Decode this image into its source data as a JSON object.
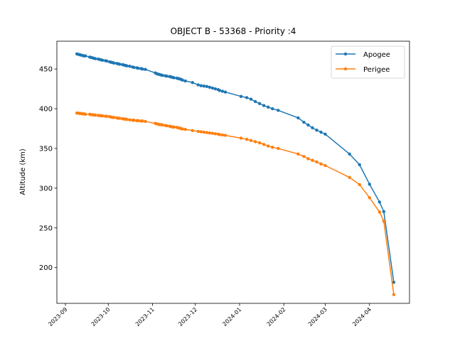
{
  "chart_data": {
    "type": "line",
    "title": "OBJECT B - 53368 - Priority :4",
    "xlabel": "",
    "ylabel": "Altitude (km)",
    "x_axis_type": "date",
    "xlim": [
      "2023-08-26",
      "2024-04-29"
    ],
    "ylim": [
      155,
      485
    ],
    "x_ticks": [
      "2023-09",
      "2023-10",
      "2023-11",
      "2023-12",
      "2024-01",
      "2024-02",
      "2024-03",
      "2024-04"
    ],
    "y_ticks": [
      200,
      250,
      300,
      350,
      400,
      450
    ],
    "grid": false,
    "legend_position": "top-right",
    "series": [
      {
        "name": "Apogee",
        "color": "#1f77b4",
        "points": [
          [
            "2023-09-09",
            469
          ],
          [
            "2023-09-10",
            468.5
          ],
          [
            "2023-09-11",
            468
          ],
          [
            "2023-09-12",
            467.5
          ],
          [
            "2023-09-13",
            467
          ],
          [
            "2023-09-14",
            466.5
          ],
          [
            "2023-09-15",
            466.5
          ],
          [
            "2023-09-18",
            465
          ],
          [
            "2023-09-19",
            464.5
          ],
          [
            "2023-09-20",
            464
          ],
          [
            "2023-09-21",
            463.5
          ],
          [
            "2023-09-22",
            463
          ],
          [
            "2023-09-24",
            462.5
          ],
          [
            "2023-09-25",
            462
          ],
          [
            "2023-09-26",
            461.5
          ],
          [
            "2023-09-27",
            461
          ],
          [
            "2023-09-29",
            460.5
          ],
          [
            "2023-09-30",
            460
          ],
          [
            "2023-10-02",
            459
          ],
          [
            "2023-10-03",
            458.5
          ],
          [
            "2023-10-04",
            458
          ],
          [
            "2023-10-05",
            457.5
          ],
          [
            "2023-10-07",
            457
          ],
          [
            "2023-10-08",
            456.5
          ],
          [
            "2023-10-09",
            456
          ],
          [
            "2023-10-11",
            455.5
          ],
          [
            "2023-10-12",
            455
          ],
          [
            "2023-10-13",
            454.5
          ],
          [
            "2023-10-14",
            454
          ],
          [
            "2023-10-16",
            453.5
          ],
          [
            "2023-10-18",
            452.5
          ],
          [
            "2023-10-19",
            452
          ],
          [
            "2023-10-21",
            451.5
          ],
          [
            "2023-10-22",
            451
          ],
          [
            "2023-10-24",
            450.5
          ],
          [
            "2023-10-25",
            450
          ],
          [
            "2023-10-27",
            449.5
          ],
          [
            "2023-11-03",
            445
          ],
          [
            "2023-11-04",
            444
          ],
          [
            "2023-11-05",
            443.5
          ],
          [
            "2023-11-06",
            443
          ],
          [
            "2023-11-07",
            442.5
          ],
          [
            "2023-11-08",
            442
          ],
          [
            "2023-11-10",
            441.5
          ],
          [
            "2023-11-11",
            441
          ],
          [
            "2023-11-13",
            440.5
          ],
          [
            "2023-11-14",
            440
          ],
          [
            "2023-11-15",
            439.5
          ],
          [
            "2023-11-16",
            439
          ],
          [
            "2023-11-18",
            438.5
          ],
          [
            "2023-11-19",
            438
          ],
          [
            "2023-11-20",
            437.5
          ],
          [
            "2023-11-21",
            437
          ],
          [
            "2023-11-22",
            436
          ],
          [
            "2023-11-24",
            435
          ],
          [
            "2023-11-29",
            433
          ],
          [
            "2023-12-03",
            430
          ],
          [
            "2023-12-05",
            429
          ],
          [
            "2023-12-07",
            428.5
          ],
          [
            "2023-12-09",
            428
          ],
          [
            "2023-12-11",
            427
          ],
          [
            "2023-12-13",
            426
          ],
          [
            "2023-12-15",
            425
          ],
          [
            "2023-12-17",
            424
          ],
          [
            "2023-12-18",
            423
          ],
          [
            "2023-12-20",
            422
          ],
          [
            "2023-12-22",
            421
          ],
          [
            "2024-01-02",
            415.5
          ],
          [
            "2024-01-06",
            414
          ],
          [
            "2024-01-09",
            412
          ],
          [
            "2024-01-12",
            409
          ],
          [
            "2024-01-15",
            406.5
          ],
          [
            "2024-01-18",
            404
          ],
          [
            "2024-01-21",
            402
          ],
          [
            "2024-01-24",
            400
          ],
          [
            "2024-01-28",
            398
          ],
          [
            "2024-02-11",
            388.5
          ],
          [
            "2024-02-15",
            383
          ],
          [
            "2024-02-18",
            379.5
          ],
          [
            "2024-02-21",
            376
          ],
          [
            "2024-02-24",
            373
          ],
          [
            "2024-02-27",
            370.5
          ],
          [
            "2024-03-01",
            368
          ],
          [
            "2024-03-18",
            343
          ],
          [
            "2024-03-25",
            329.5
          ],
          [
            "2024-04-01",
            305
          ],
          [
            "2024-04-08",
            282.5
          ],
          [
            "2024-04-11",
            270.5
          ],
          [
            "2024-04-18",
            181.5
          ]
        ]
      },
      {
        "name": "Perigee",
        "color": "#ff7f0e",
        "points": [
          [
            "2023-09-09",
            394.5
          ],
          [
            "2023-09-10",
            394.5
          ],
          [
            "2023-09-11",
            394
          ],
          [
            "2023-09-12",
            394
          ],
          [
            "2023-09-13",
            393.5
          ],
          [
            "2023-09-14",
            393.5
          ],
          [
            "2023-09-15",
            393
          ],
          [
            "2023-09-18",
            393
          ],
          [
            "2023-09-19",
            392.5
          ],
          [
            "2023-09-20",
            392.5
          ],
          [
            "2023-09-21",
            392
          ],
          [
            "2023-09-22",
            392
          ],
          [
            "2023-09-24",
            391.5
          ],
          [
            "2023-09-25",
            391.5
          ],
          [
            "2023-09-26",
            391
          ],
          [
            "2023-09-27",
            391
          ],
          [
            "2023-09-29",
            390.5
          ],
          [
            "2023-09-30",
            390.5
          ],
          [
            "2023-10-02",
            390
          ],
          [
            "2023-10-03",
            389.5
          ],
          [
            "2023-10-04",
            389
          ],
          [
            "2023-10-05",
            389
          ],
          [
            "2023-10-07",
            388.5
          ],
          [
            "2023-10-08",
            388
          ],
          [
            "2023-10-09",
            388
          ],
          [
            "2023-10-11",
            387.5
          ],
          [
            "2023-10-12",
            387
          ],
          [
            "2023-10-13",
            387
          ],
          [
            "2023-10-14",
            386.5
          ],
          [
            "2023-10-16",
            386
          ],
          [
            "2023-10-18",
            385.5
          ],
          [
            "2023-10-19",
            385.5
          ],
          [
            "2023-10-21",
            385
          ],
          [
            "2023-10-22",
            385
          ],
          [
            "2023-10-24",
            384.5
          ],
          [
            "2023-10-25",
            384.5
          ],
          [
            "2023-10-27",
            384
          ],
          [
            "2023-11-03",
            381.5
          ],
          [
            "2023-11-04",
            381
          ],
          [
            "2023-11-05",
            380.5
          ],
          [
            "2023-11-06",
            380
          ],
          [
            "2023-11-07",
            380
          ],
          [
            "2023-11-08",
            379.5
          ],
          [
            "2023-11-10",
            379
          ],
          [
            "2023-11-11",
            378.5
          ],
          [
            "2023-11-13",
            378
          ],
          [
            "2023-11-14",
            377.5
          ],
          [
            "2023-11-15",
            377
          ],
          [
            "2023-11-16",
            377
          ],
          [
            "2023-11-18",
            376.5
          ],
          [
            "2023-11-19",
            376
          ],
          [
            "2023-11-20",
            375.5
          ],
          [
            "2023-11-21",
            375
          ],
          [
            "2023-11-22",
            374.5
          ],
          [
            "2023-11-24",
            374
          ],
          [
            "2023-11-29",
            372.5
          ],
          [
            "2023-12-03",
            371.5
          ],
          [
            "2023-12-05",
            371
          ],
          [
            "2023-12-07",
            370.5
          ],
          [
            "2023-12-09",
            370
          ],
          [
            "2023-12-11",
            369.5
          ],
          [
            "2023-12-13",
            369
          ],
          [
            "2023-12-15",
            368.5
          ],
          [
            "2023-12-17",
            368
          ],
          [
            "2023-12-18",
            367.5
          ],
          [
            "2023-12-20",
            367
          ],
          [
            "2023-12-22",
            366.5
          ],
          [
            "2024-01-02",
            363
          ],
          [
            "2024-01-06",
            361.5
          ],
          [
            "2024-01-09",
            360
          ],
          [
            "2024-01-12",
            358.5
          ],
          [
            "2024-01-15",
            357
          ],
          [
            "2024-01-18",
            355
          ],
          [
            "2024-01-21",
            353
          ],
          [
            "2024-01-24",
            351.5
          ],
          [
            "2024-01-28",
            350
          ],
          [
            "2024-02-11",
            343
          ],
          [
            "2024-02-15",
            340
          ],
          [
            "2024-02-18",
            337
          ],
          [
            "2024-02-21",
            335
          ],
          [
            "2024-02-24",
            333
          ],
          [
            "2024-02-27",
            330.5
          ],
          [
            "2024-03-01",
            328.5
          ],
          [
            "2024-03-18",
            313.5
          ],
          [
            "2024-03-25",
            304.5
          ],
          [
            "2024-04-01",
            288
          ],
          [
            "2024-04-08",
            270
          ],
          [
            "2024-04-11",
            258.5
          ],
          [
            "2024-04-18",
            166
          ]
        ]
      }
    ]
  }
}
